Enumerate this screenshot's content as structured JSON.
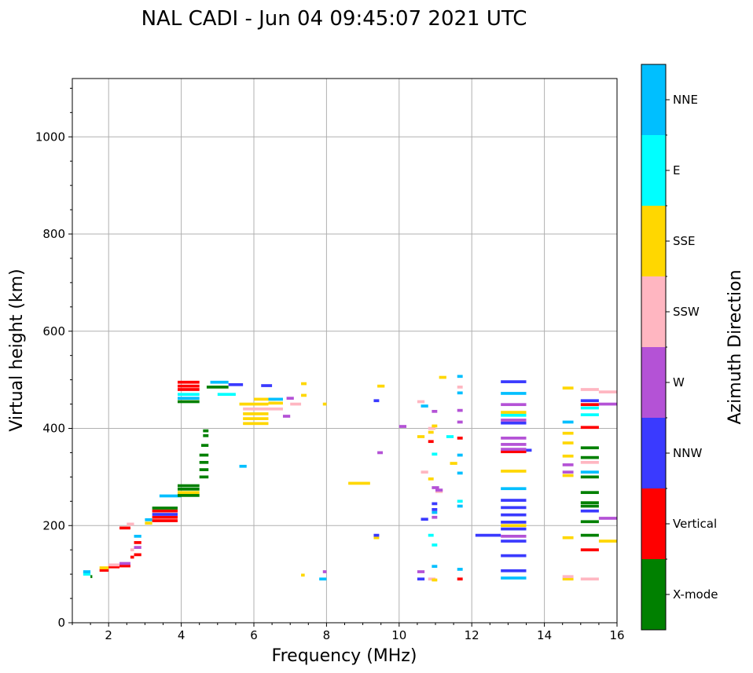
{
  "chart_data": {
    "type": "scatter",
    "title": "NAL CADI - Jun 04 09:45:07 2021 UTC",
    "xlabel": "Frequency (MHz)",
    "ylabel": "Virtual height (km)",
    "colorbar_label": "Azimuth Direction",
    "xlim": [
      1,
      16
    ],
    "ylim": [
      0,
      1120
    ],
    "xticks": [
      2,
      4,
      6,
      8,
      10,
      12,
      14,
      16
    ],
    "yticks": [
      0,
      200,
      400,
      600,
      800,
      1000
    ],
    "grid": true,
    "categories": [
      {
        "name": "X-mode",
        "color": "#008000"
      },
      {
        "name": "Vertical",
        "color": "#ff0000"
      },
      {
        "name": "NNW",
        "color": "#3a3aff"
      },
      {
        "name": "W",
        "color": "#b452d6"
      },
      {
        "name": "SSW",
        "color": "#ffb6c1"
      },
      {
        "name": "SSE",
        "color": "#ffd700"
      },
      {
        "name": "E",
        "color": "#00ffff"
      },
      {
        "name": "NNE",
        "color": "#00bfff"
      }
    ],
    "traces": [
      {
        "f0": 1.3,
        "f1": 1.5,
        "h": 100,
        "c": "E"
      },
      {
        "f0": 1.3,
        "f1": 1.5,
        "h": 105,
        "c": "NNE"
      },
      {
        "f0": 1.5,
        "f1": 1.55,
        "h": 95,
        "c": "X-mode"
      },
      {
        "f0": 1.75,
        "f1": 2.0,
        "h": 108,
        "c": "Vertical"
      },
      {
        "f0": 1.75,
        "f1": 2.0,
        "h": 113,
        "c": "SSE"
      },
      {
        "f0": 2.0,
        "f1": 2.3,
        "h": 115,
        "c": "Vertical"
      },
      {
        "f0": 2.0,
        "f1": 2.3,
        "h": 119,
        "c": "SSW"
      },
      {
        "f0": 2.3,
        "f1": 2.6,
        "h": 117,
        "c": "Vertical"
      },
      {
        "f0": 2.3,
        "f1": 2.6,
        "h": 122,
        "c": "W"
      },
      {
        "f0": 2.6,
        "f1": 2.7,
        "h": 135,
        "c": "Vertical"
      },
      {
        "f0": 2.6,
        "f1": 2.7,
        "h": 150,
        "c": "SSW"
      },
      {
        "f0": 2.7,
        "f1": 2.9,
        "h": 140,
        "c": "Vertical"
      },
      {
        "f0": 2.7,
        "f1": 2.9,
        "h": 155,
        "c": "W"
      },
      {
        "f0": 2.7,
        "f1": 2.9,
        "h": 165,
        "c": "Vertical"
      },
      {
        "f0": 2.7,
        "f1": 2.9,
        "h": 178,
        "c": "NNE"
      },
      {
        "f0": 2.3,
        "f1": 2.6,
        "h": 195,
        "c": "Vertical"
      },
      {
        "f0": 2.5,
        "f1": 2.7,
        "h": 203,
        "c": "SSW"
      },
      {
        "f0": 3.0,
        "f1": 3.2,
        "h": 205,
        "c": "SSE"
      },
      {
        "f0": 3.0,
        "f1": 3.2,
        "h": 212,
        "c": "NNE"
      },
      {
        "f0": 3.2,
        "f1": 3.9,
        "h": 210,
        "c": "Vertical"
      },
      {
        "f0": 3.2,
        "f1": 3.9,
        "h": 217,
        "c": "Vertical"
      },
      {
        "f0": 3.2,
        "f1": 3.9,
        "h": 223,
        "c": "NNW"
      },
      {
        "f0": 3.2,
        "f1": 3.9,
        "h": 230,
        "c": "Vertical"
      },
      {
        "f0": 3.2,
        "f1": 3.9,
        "h": 236,
        "c": "X-mode"
      },
      {
        "f0": 3.4,
        "f1": 4.0,
        "h": 261,
        "c": "NNE"
      },
      {
        "f0": 3.9,
        "f1": 4.5,
        "h": 262,
        "c": "X-mode"
      },
      {
        "f0": 3.9,
        "f1": 4.5,
        "h": 268,
        "c": "SSE"
      },
      {
        "f0": 3.9,
        "f1": 4.5,
        "h": 275,
        "c": "X-mode"
      },
      {
        "f0": 3.9,
        "f1": 4.5,
        "h": 282,
        "c": "X-mode"
      },
      {
        "f0": 3.9,
        "f1": 4.5,
        "h": 455,
        "c": "X-mode"
      },
      {
        "f0": 3.9,
        "f1": 4.5,
        "h": 462,
        "c": "NNE"
      },
      {
        "f0": 3.9,
        "f1": 4.5,
        "h": 470,
        "c": "E"
      },
      {
        "f0": 3.9,
        "f1": 4.5,
        "h": 480,
        "c": "Vertical"
      },
      {
        "f0": 3.9,
        "f1": 4.5,
        "h": 487,
        "c": "Vertical"
      },
      {
        "f0": 3.9,
        "f1": 4.5,
        "h": 495,
        "c": "Vertical"
      },
      {
        "f0": 4.5,
        "f1": 4.75,
        "h": 300,
        "c": "X-mode"
      },
      {
        "f0": 4.5,
        "f1": 4.75,
        "h": 315,
        "c": "X-mode"
      },
      {
        "f0": 4.5,
        "f1": 4.75,
        "h": 330,
        "c": "X-mode"
      },
      {
        "f0": 4.5,
        "f1": 4.75,
        "h": 345,
        "c": "X-mode"
      },
      {
        "f0": 4.55,
        "f1": 4.75,
        "h": 365,
        "c": "X-mode"
      },
      {
        "f0": 4.6,
        "f1": 4.75,
        "h": 385,
        "c": "X-mode"
      },
      {
        "f0": 4.6,
        "f1": 4.75,
        "h": 395,
        "c": "X-mode"
      },
      {
        "f0": 4.7,
        "f1": 5.3,
        "h": 485,
        "c": "X-mode"
      },
      {
        "f0": 4.8,
        "f1": 5.3,
        "h": 495,
        "c": "NNE"
      },
      {
        "f0": 5.0,
        "f1": 5.5,
        "h": 470,
        "c": "E"
      },
      {
        "f0": 5.3,
        "f1": 5.7,
        "h": 490,
        "c": "NNW"
      },
      {
        "f0": 5.7,
        "f1": 6.4,
        "h": 410,
        "c": "SSE"
      },
      {
        "f0": 5.7,
        "f1": 6.4,
        "h": 420,
        "c": "SSE"
      },
      {
        "f0": 5.7,
        "f1": 6.4,
        "h": 430,
        "c": "SSE"
      },
      {
        "f0": 5.7,
        "f1": 6.4,
        "h": 440,
        "c": "SSW"
      },
      {
        "f0": 5.6,
        "f1": 6.4,
        "h": 450,
        "c": "SSE"
      },
      {
        "f0": 6.0,
        "f1": 6.6,
        "h": 460,
        "c": "SSE"
      },
      {
        "f0": 6.4,
        "f1": 6.8,
        "h": 440,
        "c": "SSW"
      },
      {
        "f0": 6.4,
        "f1": 6.8,
        "h": 452,
        "c": "SSE"
      },
      {
        "f0": 6.4,
        "f1": 6.8,
        "h": 460,
        "c": "NNE"
      },
      {
        "f0": 6.8,
        "f1": 7.0,
        "h": 425,
        "c": "W"
      },
      {
        "f0": 7.0,
        "f1": 7.3,
        "h": 450,
        "c": "SSW"
      },
      {
        "f0": 6.9,
        "f1": 7.1,
        "h": 462,
        "c": "W"
      },
      {
        "f0": 6.2,
        "f1": 6.5,
        "h": 488,
        "c": "NNW"
      },
      {
        "f0": 5.6,
        "f1": 5.8,
        "h": 322,
        "c": "NNE"
      },
      {
        "f0": 7.3,
        "f1": 7.45,
        "h": 468,
        "c": "SSE"
      },
      {
        "f0": 7.3,
        "f1": 7.45,
        "h": 492,
        "c": "SSE"
      },
      {
        "f0": 7.3,
        "f1": 7.4,
        "h": 98,
        "c": "SSE"
      },
      {
        "f0": 7.8,
        "f1": 8.0,
        "h": 90,
        "c": "NNE"
      },
      {
        "f0": 7.9,
        "f1": 8.0,
        "h": 105,
        "c": "W"
      },
      {
        "f0": 7.9,
        "f1": 8.0,
        "h": 450,
        "c": "SSE"
      },
      {
        "f0": 8.6,
        "f1": 9.2,
        "h": 287,
        "c": "SSE"
      },
      {
        "f0": 9.3,
        "f1": 9.45,
        "h": 175,
        "c": "SSE"
      },
      {
        "f0": 9.3,
        "f1": 9.45,
        "h": 180,
        "c": "NNW"
      },
      {
        "f0": 9.3,
        "f1": 9.45,
        "h": 457,
        "c": "NNW"
      },
      {
        "f0": 9.4,
        "f1": 9.55,
        "h": 350,
        "c": "W"
      },
      {
        "f0": 9.4,
        "f1": 9.6,
        "h": 487,
        "c": "SSE"
      },
      {
        "f0": 10.0,
        "f1": 10.2,
        "h": 404,
        "c": "W"
      },
      {
        "f0": 10.5,
        "f1": 10.7,
        "h": 90,
        "c": "NNW"
      },
      {
        "f0": 10.5,
        "f1": 10.7,
        "h": 105,
        "c": "W"
      },
      {
        "f0": 10.6,
        "f1": 10.8,
        "h": 213,
        "c": "NNW"
      },
      {
        "f0": 10.6,
        "f1": 10.8,
        "h": 310,
        "c": "SSW"
      },
      {
        "f0": 10.5,
        "f1": 10.7,
        "h": 383,
        "c": "SSE"
      },
      {
        "f0": 10.6,
        "f1": 10.8,
        "h": 446,
        "c": "NNE"
      },
      {
        "f0": 10.5,
        "f1": 10.7,
        "h": 455,
        "c": "SSW"
      },
      {
        "f0": 10.8,
        "f1": 11.0,
        "h": 90,
        "c": "SSW"
      },
      {
        "f0": 10.8,
        "f1": 10.95,
        "h": 180,
        "c": "E"
      },
      {
        "f0": 10.8,
        "f1": 10.95,
        "h": 296,
        "c": "SSE"
      },
      {
        "f0": 10.8,
        "f1": 10.95,
        "h": 373,
        "c": "Vertical"
      },
      {
        "f0": 10.8,
        "f1": 10.95,
        "h": 392,
        "c": "SSE"
      },
      {
        "f0": 10.8,
        "f1": 11.0,
        "h": 400,
        "c": "SSW"
      },
      {
        "f0": 10.9,
        "f1": 11.05,
        "h": 88,
        "c": "SSE"
      },
      {
        "f0": 10.9,
        "f1": 11.05,
        "h": 116,
        "c": "NNE"
      },
      {
        "f0": 10.9,
        "f1": 11.05,
        "h": 160,
        "c": "E"
      },
      {
        "f0": 10.9,
        "f1": 11.05,
        "h": 217,
        "c": "W"
      },
      {
        "f0": 10.9,
        "f1": 11.05,
        "h": 227,
        "c": "NNE"
      },
      {
        "f0": 10.9,
        "f1": 11.05,
        "h": 233,
        "c": "NNW"
      },
      {
        "f0": 10.9,
        "f1": 11.05,
        "h": 245,
        "c": "NNW"
      },
      {
        "f0": 10.9,
        "f1": 11.1,
        "h": 278,
        "c": "W"
      },
      {
        "f0": 10.9,
        "f1": 11.05,
        "h": 347,
        "c": "E"
      },
      {
        "f0": 10.9,
        "f1": 11.05,
        "h": 405,
        "c": "SSE"
      },
      {
        "f0": 10.9,
        "f1": 11.05,
        "h": 435,
        "c": "W"
      },
      {
        "f0": 11.0,
        "f1": 11.2,
        "h": 270,
        "c": "SSW"
      },
      {
        "f0": 11.0,
        "f1": 11.2,
        "h": 273,
        "c": "W"
      },
      {
        "f0": 11.1,
        "f1": 11.3,
        "h": 505,
        "c": "SSE"
      },
      {
        "f0": 11.3,
        "f1": 11.5,
        "h": 383,
        "c": "E"
      },
      {
        "f0": 11.4,
        "f1": 11.6,
        "h": 328,
        "c": "SSE"
      },
      {
        "f0": 11.6,
        "f1": 11.75,
        "h": 90,
        "c": "Vertical"
      },
      {
        "f0": 11.6,
        "f1": 11.75,
        "h": 110,
        "c": "NNE"
      },
      {
        "f0": 11.6,
        "f1": 11.75,
        "h": 240,
        "c": "NNE"
      },
      {
        "f0": 11.6,
        "f1": 11.75,
        "h": 250,
        "c": "E"
      },
      {
        "f0": 11.6,
        "f1": 11.75,
        "h": 308,
        "c": "NNE"
      },
      {
        "f0": 11.6,
        "f1": 11.75,
        "h": 345,
        "c": "NNE"
      },
      {
        "f0": 11.6,
        "f1": 11.75,
        "h": 380,
        "c": "Vertical"
      },
      {
        "f0": 11.6,
        "f1": 11.75,
        "h": 413,
        "c": "W"
      },
      {
        "f0": 11.6,
        "f1": 11.75,
        "h": 437,
        "c": "W"
      },
      {
        "f0": 11.6,
        "f1": 11.75,
        "h": 473,
        "c": "NNE"
      },
      {
        "f0": 11.6,
        "f1": 11.75,
        "h": 485,
        "c": "SSW"
      },
      {
        "f0": 11.6,
        "f1": 11.75,
        "h": 507,
        "c": "NNE"
      },
      {
        "f0": 12.1,
        "f1": 12.8,
        "h": 180,
        "c": "NNW"
      },
      {
        "f0": 12.8,
        "f1": 13.5,
        "h": 92,
        "c": "NNE"
      },
      {
        "f0": 12.8,
        "f1": 13.5,
        "h": 107,
        "c": "NNW"
      },
      {
        "f0": 12.8,
        "f1": 13.5,
        "h": 138,
        "c": "NNW"
      },
      {
        "f0": 12.8,
        "f1": 13.5,
        "h": 168,
        "c": "NNW"
      },
      {
        "f0": 12.8,
        "f1": 13.5,
        "h": 178,
        "c": "W"
      },
      {
        "f0": 12.8,
        "f1": 13.5,
        "h": 193,
        "c": "NNW"
      },
      {
        "f0": 12.8,
        "f1": 13.5,
        "h": 200,
        "c": "SSE"
      },
      {
        "f0": 12.8,
        "f1": 13.5,
        "h": 207,
        "c": "NNW"
      },
      {
        "f0": 12.8,
        "f1": 13.5,
        "h": 222,
        "c": "NNW"
      },
      {
        "f0": 12.8,
        "f1": 13.5,
        "h": 237,
        "c": "NNW"
      },
      {
        "f0": 12.8,
        "f1": 13.5,
        "h": 252,
        "c": "NNW"
      },
      {
        "f0": 12.8,
        "f1": 13.5,
        "h": 276,
        "c": "NNE"
      },
      {
        "f0": 12.8,
        "f1": 13.5,
        "h": 312,
        "c": "SSE"
      },
      {
        "f0": 12.8,
        "f1": 13.5,
        "h": 352,
        "c": "Vertical"
      },
      {
        "f0": 12.8,
        "f1": 13.5,
        "h": 357,
        "c": "W"
      },
      {
        "f0": 12.8,
        "f1": 13.5,
        "h": 367,
        "c": "W"
      },
      {
        "f0": 12.8,
        "f1": 13.5,
        "h": 380,
        "c": "W"
      },
      {
        "f0": 12.8,
        "f1": 13.5,
        "h": 411,
        "c": "NNW"
      },
      {
        "f0": 12.8,
        "f1": 13.5,
        "h": 417,
        "c": "W"
      },
      {
        "f0": 12.8,
        "f1": 13.5,
        "h": 427,
        "c": "E"
      },
      {
        "f0": 12.8,
        "f1": 13.5,
        "h": 433,
        "c": "SSE"
      },
      {
        "f0": 12.8,
        "f1": 13.5,
        "h": 449,
        "c": "W"
      },
      {
        "f0": 12.8,
        "f1": 13.5,
        "h": 472,
        "c": "NNE"
      },
      {
        "f0": 12.8,
        "f1": 13.5,
        "h": 496,
        "c": "NNW"
      },
      {
        "f0": 13.5,
        "f1": 13.65,
        "h": 355,
        "c": "NNW"
      },
      {
        "f0": 14.5,
        "f1": 14.8,
        "h": 90,
        "c": "SSE"
      },
      {
        "f0": 14.5,
        "f1": 14.8,
        "h": 95,
        "c": "SSW"
      },
      {
        "f0": 14.5,
        "f1": 14.8,
        "h": 175,
        "c": "SSE"
      },
      {
        "f0": 14.5,
        "f1": 14.8,
        "h": 303,
        "c": "SSE"
      },
      {
        "f0": 14.5,
        "f1": 14.8,
        "h": 310,
        "c": "W"
      },
      {
        "f0": 14.5,
        "f1": 14.8,
        "h": 325,
        "c": "W"
      },
      {
        "f0": 14.5,
        "f1": 14.8,
        "h": 343,
        "c": "SSE"
      },
      {
        "f0": 14.5,
        "f1": 14.8,
        "h": 370,
        "c": "SSE"
      },
      {
        "f0": 14.5,
        "f1": 14.8,
        "h": 390,
        "c": "SSE"
      },
      {
        "f0": 14.5,
        "f1": 14.8,
        "h": 413,
        "c": "NNE"
      },
      {
        "f0": 14.5,
        "f1": 14.8,
        "h": 483,
        "c": "SSE"
      },
      {
        "f0": 15.0,
        "f1": 15.5,
        "h": 90,
        "c": "SSW"
      },
      {
        "f0": 15.0,
        "f1": 15.5,
        "h": 150,
        "c": "Vertical"
      },
      {
        "f0": 15.0,
        "f1": 15.5,
        "h": 180,
        "c": "X-mode"
      },
      {
        "f0": 15.0,
        "f1": 15.5,
        "h": 208,
        "c": "X-mode"
      },
      {
        "f0": 15.0,
        "f1": 15.5,
        "h": 230,
        "c": "NNW"
      },
      {
        "f0": 15.0,
        "f1": 15.5,
        "h": 240,
        "c": "X-mode"
      },
      {
        "f0": 15.0,
        "f1": 15.5,
        "h": 247,
        "c": "X-mode"
      },
      {
        "f0": 15.0,
        "f1": 15.5,
        "h": 268,
        "c": "X-mode"
      },
      {
        "f0": 15.0,
        "f1": 15.5,
        "h": 300,
        "c": "X-mode"
      },
      {
        "f0": 15.0,
        "f1": 15.5,
        "h": 310,
        "c": "NNE"
      },
      {
        "f0": 15.0,
        "f1": 15.5,
        "h": 330,
        "c": "SSW"
      },
      {
        "f0": 15.0,
        "f1": 15.5,
        "h": 340,
        "c": "X-mode"
      },
      {
        "f0": 15.0,
        "f1": 15.5,
        "h": 360,
        "c": "X-mode"
      },
      {
        "f0": 15.0,
        "f1": 15.5,
        "h": 402,
        "c": "Vertical"
      },
      {
        "f0": 15.0,
        "f1": 15.5,
        "h": 428,
        "c": "E"
      },
      {
        "f0": 15.0,
        "f1": 15.5,
        "h": 442,
        "c": "E"
      },
      {
        "f0": 15.0,
        "f1": 15.5,
        "h": 449,
        "c": "Vertical"
      },
      {
        "f0": 15.0,
        "f1": 15.5,
        "h": 457,
        "c": "NNW"
      },
      {
        "f0": 15.0,
        "f1": 15.5,
        "h": 480,
        "c": "SSW"
      },
      {
        "f0": 15.5,
        "f1": 16.0,
        "h": 215,
        "c": "W"
      },
      {
        "f0": 15.5,
        "f1": 16.0,
        "h": 168,
        "c": "SSE"
      },
      {
        "f0": 15.5,
        "f1": 16.0,
        "h": 450,
        "c": "W"
      },
      {
        "f0": 15.5,
        "f1": 16.0,
        "h": 475,
        "c": "SSW"
      }
    ]
  }
}
